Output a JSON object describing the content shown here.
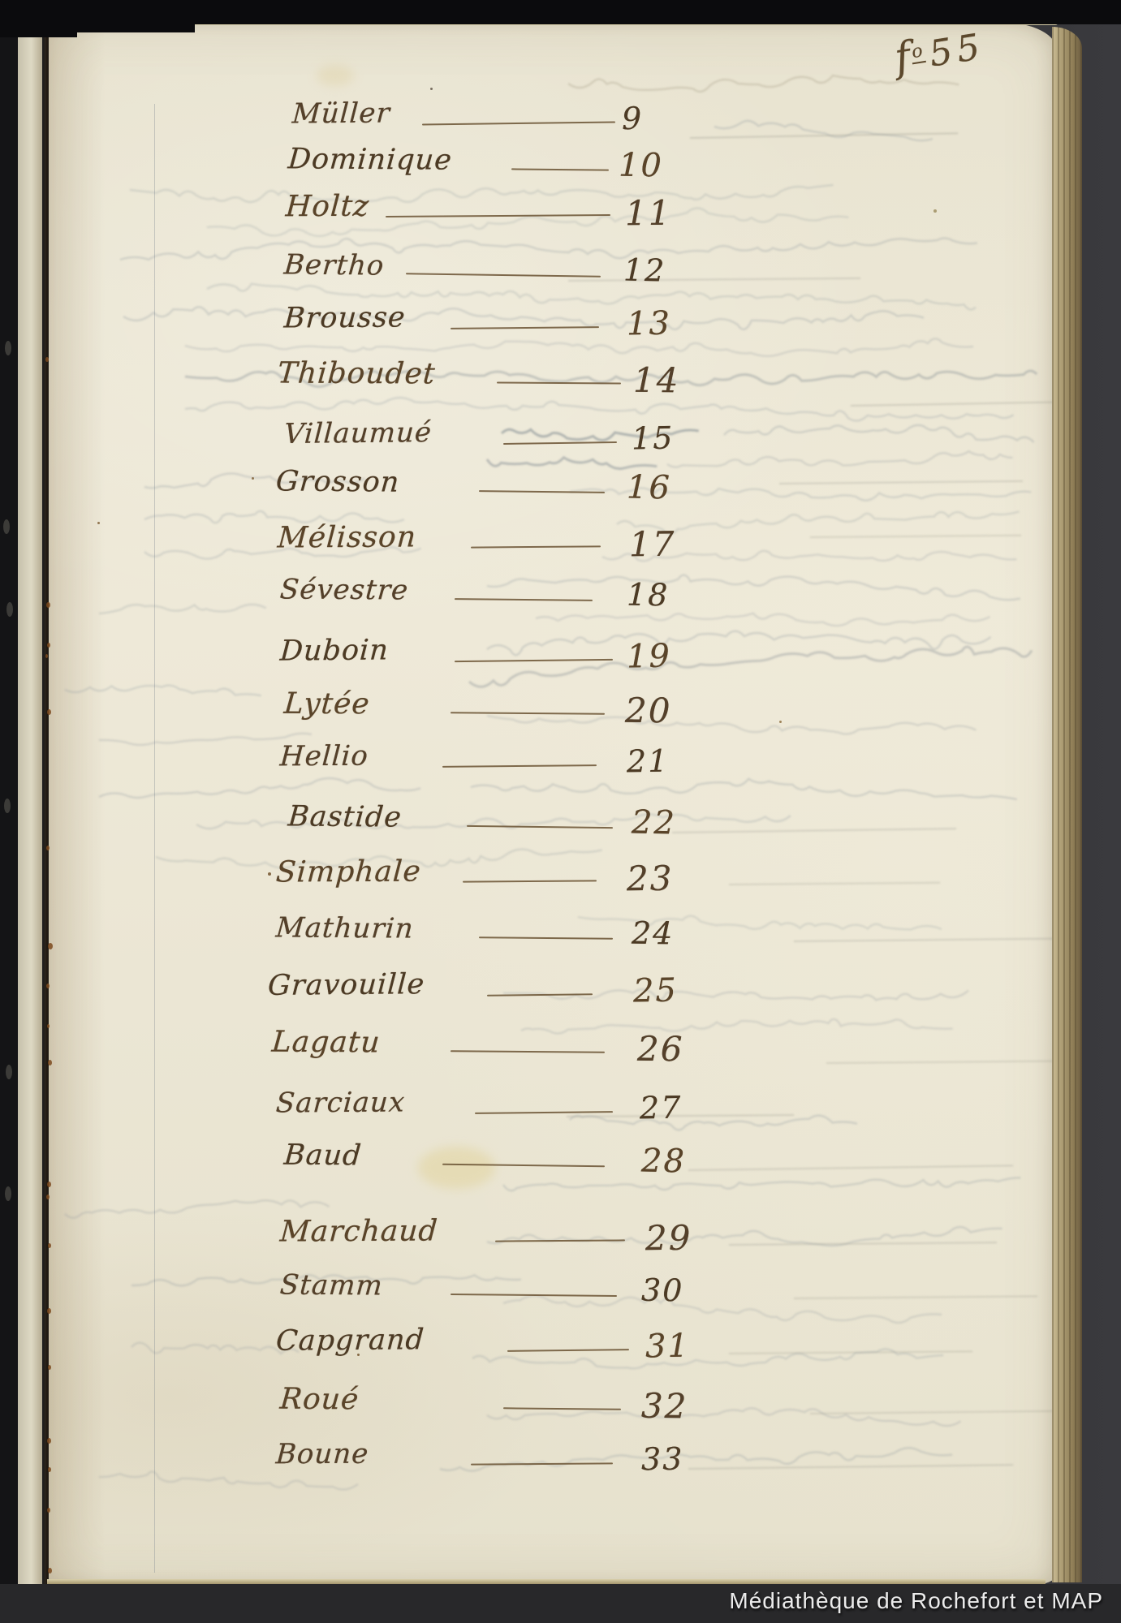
{
  "document": {
    "type": "manuscript-register-scan",
    "folio": {
      "f_letter": "f",
      "sup": "o",
      "number": "55"
    },
    "watermark": "Médiathèque de Rochefort et MAP"
  },
  "register": {
    "entries": [
      {
        "name": "Müller",
        "number": "9"
      },
      {
        "name": "Dominique",
        "number": "10"
      },
      {
        "name": "Holtz",
        "number": "11"
      },
      {
        "name": "Bertho",
        "number": "12"
      },
      {
        "name": "Brousse",
        "number": "13"
      },
      {
        "name": "Thiboudet",
        "number": "14"
      },
      {
        "name": "Villaumué",
        "number": "15"
      },
      {
        "name": "Grosson",
        "number": "16"
      },
      {
        "name": "Mélisson",
        "number": "17"
      },
      {
        "name": "Sévestre",
        "number": "18"
      },
      {
        "name": "Duboin",
        "number": "19"
      },
      {
        "name": "Lytée",
        "number": "20"
      },
      {
        "name": "Hellio",
        "number": "21"
      },
      {
        "name": "Bastide",
        "number": "22"
      },
      {
        "name": "Simphale",
        "number": "23"
      },
      {
        "name": "Mathurin",
        "number": "24"
      },
      {
        "name": "Gravouille",
        "number": "25"
      },
      {
        "name": "Lagatu",
        "number": "26"
      },
      {
        "name": "Sarciaux",
        "number": "27"
      },
      {
        "name": "Baud",
        "number": "28"
      },
      {
        "name": "Marchaud",
        "number": "29"
      },
      {
        "name": "Stamm",
        "number": "30"
      },
      {
        "name": "Capgrand",
        "number": "31"
      },
      {
        "name": "Roué",
        "number": "32"
      },
      {
        "name": "Boune",
        "number": "33"
      }
    ]
  },
  "colors": {
    "ink": "#54402a",
    "ink_dark": "#4c3a24",
    "dash": "#6a5233",
    "paper": "#eae5d3",
    "scan_background": "#2f2f32",
    "watermark_text": "#ececec"
  }
}
